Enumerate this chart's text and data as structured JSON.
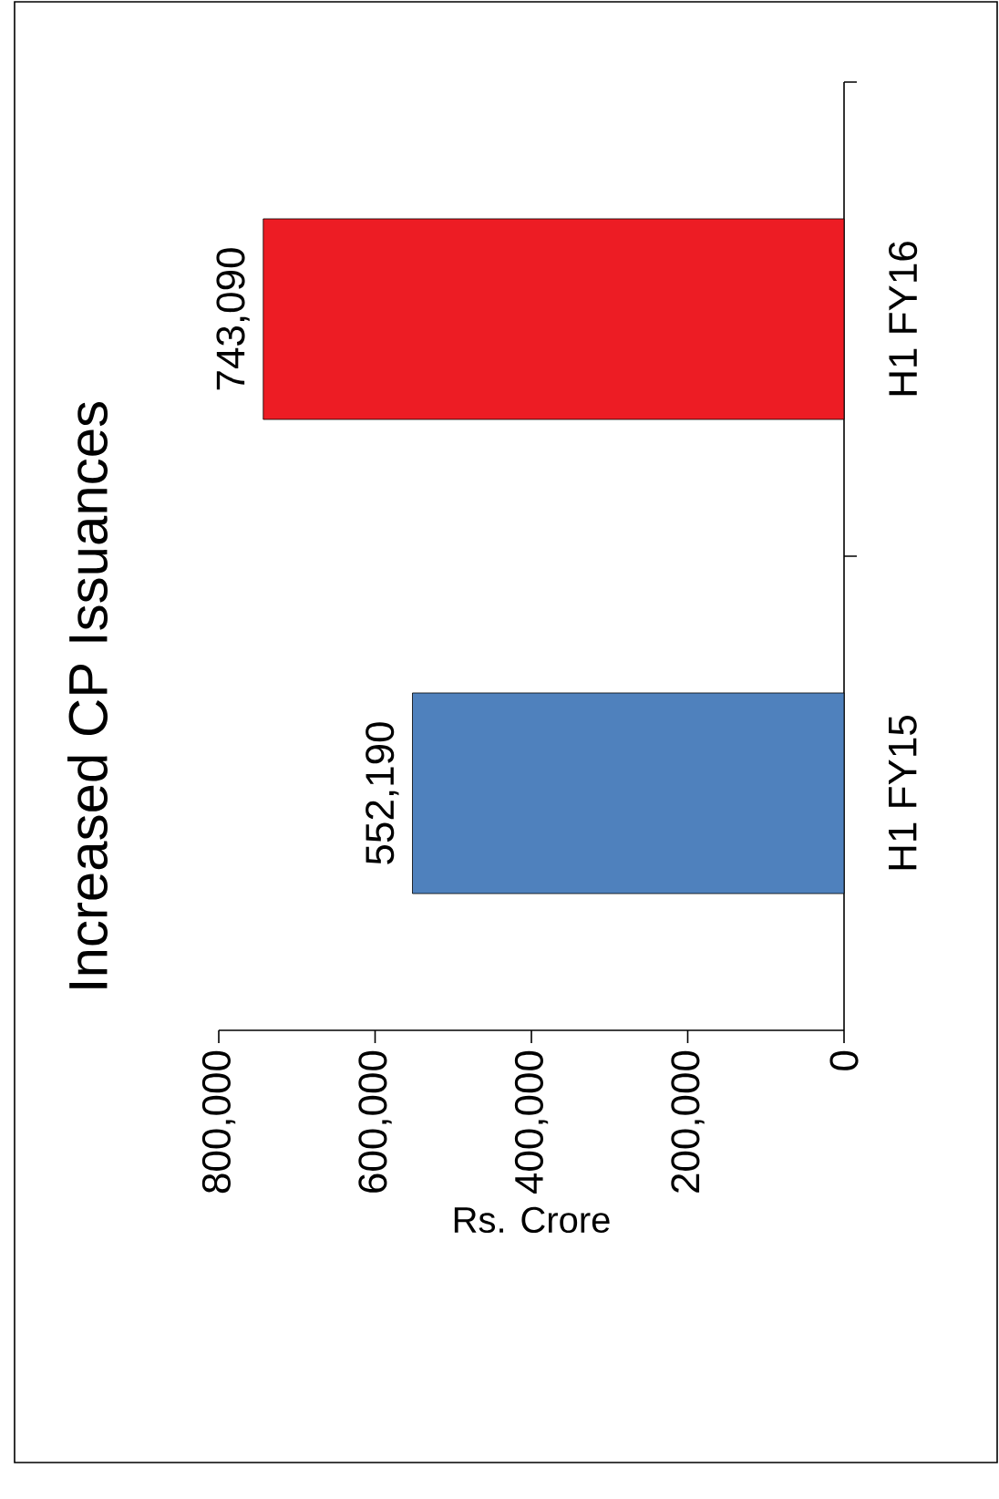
{
  "chart_data": {
    "type": "bar",
    "orientation": "horizontal",
    "title": "Increased CP Issuances",
    "xlabel": "Rs. Crore",
    "categories": [
      "H1 FY16",
      "H1 FY15"
    ],
    "values": [
      743090,
      552190
    ],
    "colors": [
      "#ed1c24",
      "#4f81bd"
    ],
    "value_labels": [
      "743,090",
      "552,190"
    ],
    "xlim": [
      800000,
      0
    ],
    "xticks": [
      {
        "value": 800000,
        "label": "800,000"
      },
      {
        "value": 600000,
        "label": "600,000"
      },
      {
        "value": 400000,
        "label": "400,000"
      },
      {
        "value": 200000,
        "label": "200,000"
      },
      {
        "value": 0,
        "label": "0"
      }
    ]
  }
}
